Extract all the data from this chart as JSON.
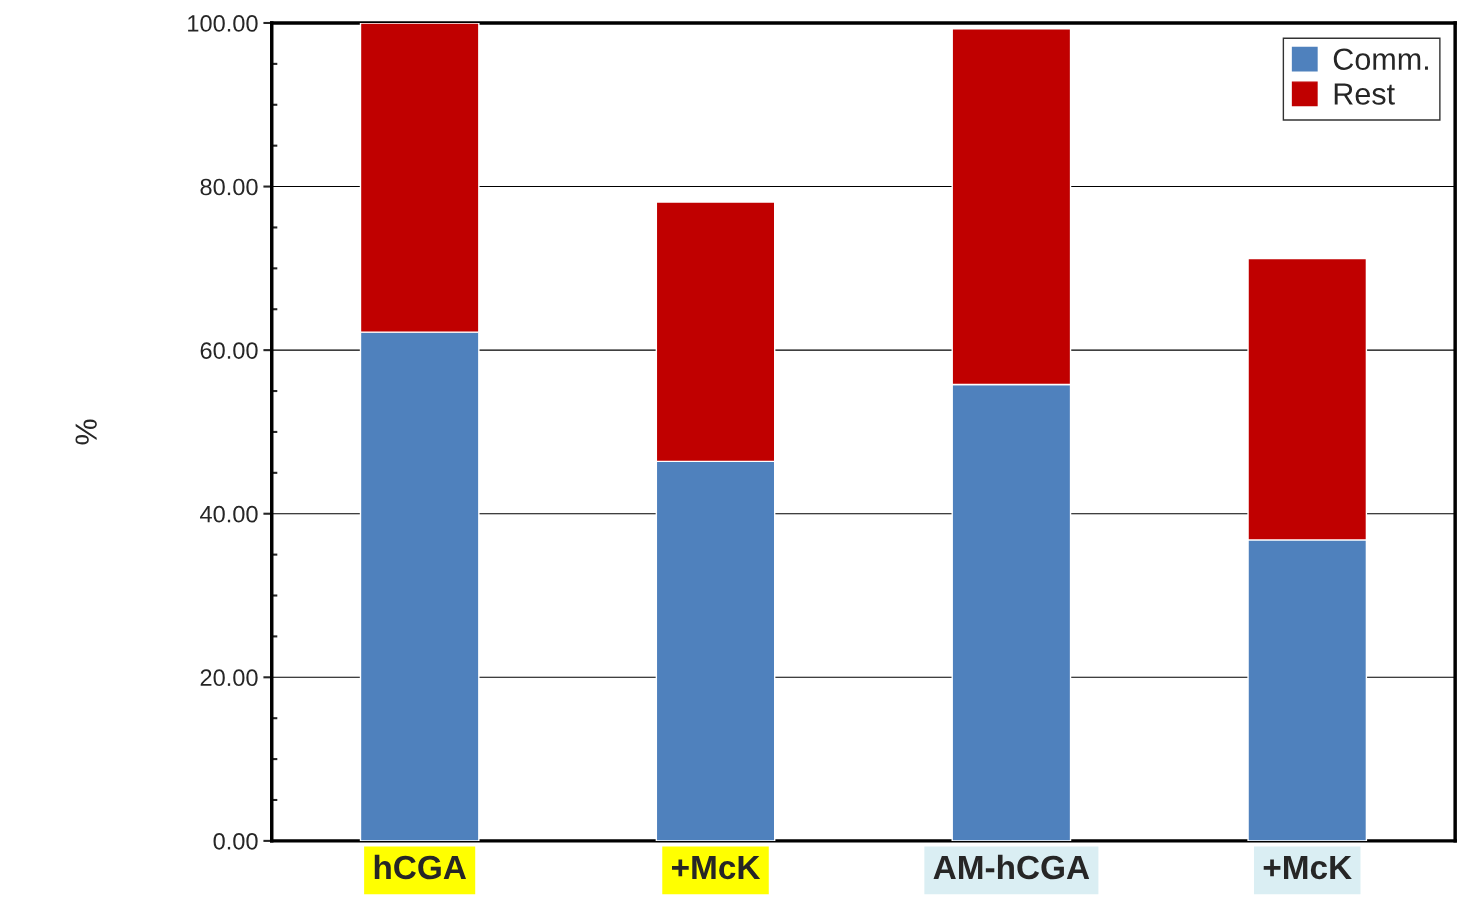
{
  "chart_data": {
    "type": "bar",
    "stacked": true,
    "ylabel": "%",
    "categories": [
      "hCGA",
      "+McK",
      "AM-hCGA",
      "+McK"
    ],
    "series": [
      {
        "name": "Comm.",
        "color": "#4f81bd",
        "values": [
          62.2,
          46.4,
          55.8,
          36.8
        ]
      },
      {
        "name": "Rest",
        "color": "#c00000",
        "values": [
          37.8,
          31.7,
          43.5,
          34.4
        ]
      }
    ],
    "ylim": [
      0,
      100
    ],
    "yticks": [
      {
        "value": 0,
        "label": "0.00"
      },
      {
        "value": 20,
        "label": "20.00"
      },
      {
        "value": 40,
        "label": "40.00"
      },
      {
        "value": 60,
        "label": "60.00"
      },
      {
        "value": 80,
        "label": "80.00"
      },
      {
        "value": 100,
        "label": "100.00"
      }
    ],
    "grid": "y",
    "legend": "top right"
  }
}
